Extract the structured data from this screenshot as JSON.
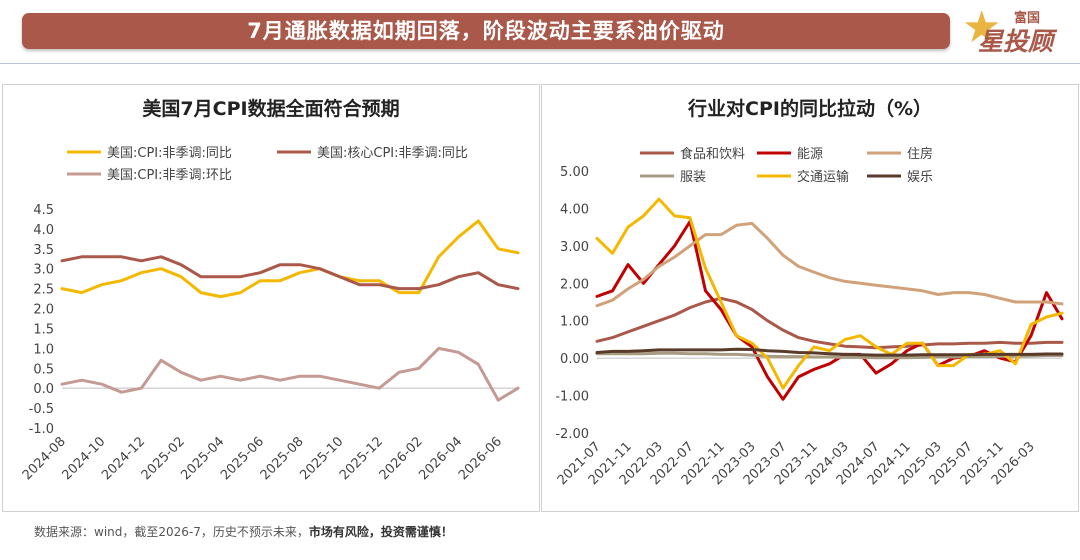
{
  "header": {
    "title": "7月通胀数据如期回落，阶段波动主要系油价驱动"
  },
  "logo": {
    "line1": "富国",
    "line2": "星投顾",
    "icon": "star-icon"
  },
  "footer": {
    "source": "数据来源：wind，截至2026-7，历史不预示未来，",
    "risk": "市场有风险，投资需谨慎！"
  },
  "chart_data": [
    {
      "type": "line",
      "title": "美国7月CPI数据全面符合预期",
      "xlabel": "",
      "ylabel": "",
      "ylim": [
        -1.0,
        4.5
      ],
      "yticks": [
        "4.5",
        "4.0",
        "3.5",
        "3.0",
        "2.5",
        "2.0",
        "1.5",
        "1.0",
        "0.5",
        "0.0",
        "-0.5",
        "-1.0"
      ],
      "legend_placement": "top",
      "grid": false,
      "x": [
        "2024-08",
        "2024-09",
        "2024-10",
        "2024-11",
        "2024-12",
        "2025-01",
        "2025-02",
        "2025-03",
        "2025-04",
        "2025-05",
        "2025-06",
        "2025-07",
        "2025-08",
        "2025-09",
        "2025-10",
        "2025-11",
        "2025-12",
        "2026-01",
        "2026-02",
        "2026-03",
        "2026-04",
        "2026-05",
        "2026-06",
        "2026-07"
      ],
      "xticks": [
        "2024-08",
        "2024-10",
        "2024-12",
        "2025-02",
        "2025-04",
        "2025-06",
        "2025-08",
        "2025-10",
        "2025-12",
        "2026-02",
        "2026-04",
        "2026-06"
      ],
      "series": [
        {
          "name": "美国:CPI:非季调:同比",
          "color": "#f5b800",
          "values": [
            2.5,
            2.4,
            2.6,
            2.7,
            2.9,
            3.0,
            2.8,
            2.4,
            2.3,
            2.4,
            2.7,
            2.7,
            2.9,
            3.0,
            2.8,
            2.7,
            2.7,
            2.4,
            2.4,
            3.3,
            3.8,
            4.2,
            3.5,
            3.4
          ]
        },
        {
          "name": "美国:核心CPI:非季调:同比",
          "color": "#a9584a",
          "values": [
            3.2,
            3.3,
            3.3,
            3.3,
            3.2,
            3.3,
            3.1,
            2.8,
            2.8,
            2.8,
            2.9,
            3.1,
            3.1,
            3.0,
            2.8,
            2.6,
            2.6,
            2.5,
            2.5,
            2.6,
            2.8,
            2.9,
            2.6,
            2.5
          ]
        },
        {
          "name": "美国:CPI:非季调:环比",
          "color": "#c49a92",
          "values": [
            0.1,
            0.2,
            0.1,
            -0.1,
            0.0,
            0.7,
            0.4,
            0.2,
            0.3,
            0.2,
            0.3,
            0.2,
            0.3,
            0.3,
            0.2,
            0.1,
            0.0,
            0.4,
            0.5,
            1.0,
            0.9,
            0.6,
            -0.3,
            0.0
          ]
        }
      ]
    },
    {
      "type": "line",
      "title": "行业对CPI的同比拉动（%）",
      "xlabel": "",
      "ylabel": "",
      "ylim": [
        -2.0,
        5.0
      ],
      "yticks": [
        "5.00",
        "4.00",
        "3.00",
        "2.00",
        "1.00",
        "0.00",
        "-1.00",
        "-2.00"
      ],
      "legend_placement": "top",
      "grid": false,
      "x": [
        "2021-07",
        "2021-09",
        "2021-11",
        "2022-01",
        "2022-03",
        "2022-05",
        "2022-07",
        "2022-09",
        "2022-11",
        "2023-01",
        "2023-03",
        "2023-05",
        "2023-07",
        "2023-09",
        "2023-11",
        "2024-01",
        "2024-03",
        "2024-05",
        "2024-07",
        "2024-09",
        "2024-11",
        "2025-01",
        "2025-03",
        "2025-05",
        "2025-07",
        "2025-09",
        "2025-11",
        "2026-01",
        "2026-03",
        "2026-05",
        "2026-07"
      ],
      "xticks": [
        "2021-07",
        "2021-11",
        "2022-03",
        "2022-07",
        "2022-11",
        "2023-03",
        "2023-07",
        "2023-11",
        "2024-03",
        "2024-07",
        "2024-11",
        "2025-03",
        "2025-07",
        "2025-11",
        "2026-03"
      ],
      "series": [
        {
          "name": "食品和饮料",
          "color": "#a9584a",
          "values": [
            0.45,
            0.55,
            0.7,
            0.85,
            1.0,
            1.15,
            1.35,
            1.5,
            1.6,
            1.5,
            1.3,
            1.0,
            0.75,
            0.55,
            0.45,
            0.38,
            0.32,
            0.3,
            0.28,
            0.3,
            0.32,
            0.35,
            0.38,
            0.38,
            0.4,
            0.4,
            0.42,
            0.4,
            0.4,
            0.42,
            0.42
          ]
        },
        {
          "name": "能源",
          "color": "#c00000",
          "values": [
            1.65,
            1.8,
            2.5,
            2.0,
            2.5,
            3.0,
            3.65,
            1.8,
            1.3,
            0.6,
            0.3,
            -0.5,
            -1.1,
            -0.5,
            -0.3,
            -0.15,
            0.1,
            0.1,
            -0.4,
            -0.15,
            0.2,
            0.4,
            -0.2,
            0.0,
            0.05,
            0.2,
            0.0,
            -0.1,
            0.6,
            1.75,
            1.05
          ]
        },
        {
          "name": "住房",
          "color": "#d1a27a",
          "values": [
            1.4,
            1.55,
            1.85,
            2.1,
            2.45,
            2.7,
            3.0,
            3.3,
            3.3,
            3.55,
            3.6,
            3.2,
            2.75,
            2.45,
            2.3,
            2.15,
            2.05,
            2.0,
            1.95,
            1.9,
            1.85,
            1.8,
            1.7,
            1.75,
            1.75,
            1.7,
            1.6,
            1.5,
            1.5,
            1.5,
            1.45
          ]
        },
        {
          "name": "服装",
          "color": "#a79c82",
          "values": [
            0.12,
            0.12,
            0.12,
            0.12,
            0.13,
            0.13,
            0.12,
            0.12,
            0.1,
            0.1,
            0.08,
            0.05,
            0.04,
            0.04,
            0.03,
            0.03,
            0.02,
            0.02,
            0.01,
            0.01,
            0.01,
            0.02,
            0.03,
            0.03,
            0.04,
            0.04,
            0.05,
            0.05,
            0.06,
            0.07,
            0.07
          ]
        },
        {
          "name": "交通运输",
          "color": "#f5b800",
          "values": [
            3.2,
            2.8,
            3.5,
            3.8,
            4.25,
            3.8,
            3.75,
            2.4,
            1.5,
            0.6,
            0.4,
            0.0,
            -0.8,
            -0.2,
            0.3,
            0.2,
            0.5,
            0.6,
            0.3,
            0.1,
            0.4,
            0.4,
            -0.2,
            -0.2,
            0.1,
            0.1,
            0.2,
            -0.15,
            0.9,
            1.1,
            1.2
          ]
        },
        {
          "name": "娱乐",
          "color": "#5a3b2a",
          "values": [
            0.15,
            0.18,
            0.18,
            0.2,
            0.22,
            0.22,
            0.22,
            0.22,
            0.22,
            0.24,
            0.23,
            0.2,
            0.18,
            0.15,
            0.14,
            0.12,
            0.1,
            0.09,
            0.08,
            0.08,
            0.08,
            0.09,
            0.09,
            0.09,
            0.09,
            0.1,
            0.1,
            0.1,
            0.1,
            0.11,
            0.11
          ]
        }
      ]
    }
  ]
}
